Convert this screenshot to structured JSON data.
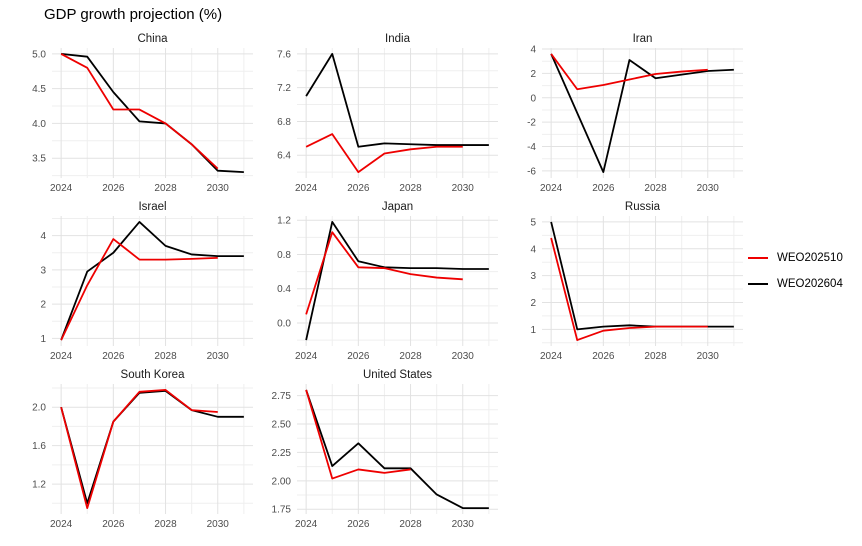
{
  "title": "GDP growth projection (%)",
  "legend": {
    "position": "right",
    "items": [
      {
        "label": "WEO202510",
        "color": "#ee0000"
      },
      {
        "label": "WEO202604",
        "color": "#000000"
      }
    ]
  },
  "chart_data": {
    "type": "line",
    "title": "GDP growth projection (%)",
    "xlabel": "",
    "ylabel": "",
    "grid": true,
    "legend_position": "right",
    "x_years": [
      2024,
      2025,
      2026,
      2027,
      2028,
      2029,
      2030,
      2031
    ],
    "xticks": [
      2024,
      2026,
      2028,
      2030
    ],
    "xtick_labels": [
      "2024",
      "2026",
      "2028",
      "2030"
    ],
    "x_minor": [
      2025,
      2027,
      2029,
      2031
    ],
    "xlim": [
      2023.65,
      2031.35
    ],
    "series_names": [
      "WEO202510",
      "WEO202604"
    ],
    "series_colors": [
      "#ee0000",
      "#000000"
    ],
    "facets": [
      {
        "name": "China",
        "yticks": [
          3.5,
          4.0,
          4.5,
          5.0
        ],
        "ytick_labels": [
          "3.5",
          "4.0",
          "4.5",
          "5.0"
        ],
        "ylim": [
          3.215,
          5.085
        ],
        "WEO202510": [
          5.0,
          4.8,
          4.2,
          4.2,
          4.0,
          3.7,
          3.35,
          null
        ],
        "WEO202604": [
          5.0,
          4.96,
          4.45,
          4.03,
          4.0,
          3.7,
          3.32,
          3.3
        ]
      },
      {
        "name": "India",
        "yticks": [
          6.4,
          6.8,
          7.2,
          7.6
        ],
        "ytick_labels": [
          "6.4",
          "6.8",
          "7.2",
          "7.6"
        ],
        "ylim": [
          6.13,
          7.67
        ],
        "WEO202510": [
          6.5,
          6.65,
          6.2,
          6.42,
          6.47,
          6.5,
          6.5,
          null
        ],
        "WEO202604": [
          7.1,
          7.6,
          6.5,
          6.54,
          6.53,
          6.52,
          6.52,
          6.52
        ]
      },
      {
        "name": "Iran",
        "yticks": [
          -6,
          -4,
          -2,
          0,
          2,
          4
        ],
        "ytick_labels": [
          "-6",
          "-4",
          "-2",
          "0",
          "2",
          "4"
        ],
        "ylim": [
          -6.585,
          4.085
        ],
        "WEO202510": [
          3.6,
          0.7,
          1.05,
          1.5,
          1.95,
          2.15,
          2.3,
          null
        ],
        "WEO202604": [
          3.6,
          -1.25,
          -6.1,
          3.1,
          1.6,
          1.9,
          2.2,
          2.3
        ]
      },
      {
        "name": "Israel",
        "yticks": [
          1,
          2,
          3,
          4
        ],
        "ytick_labels": [
          "1",
          "2",
          "3",
          "4"
        ],
        "ylim": [
          0.7775,
          4.5725
        ],
        "WEO202510": [
          0.95,
          2.55,
          3.9,
          3.3,
          3.3,
          3.32,
          3.35,
          null
        ],
        "WEO202604": [
          0.95,
          2.95,
          3.5,
          4.4,
          3.7,
          3.45,
          3.4,
          3.4
        ]
      },
      {
        "name": "Japan",
        "yticks": [
          0.0,
          0.4,
          0.8,
          1.2
        ],
        "ytick_labels": [
          "0.0",
          "0.4",
          "0.8",
          "1.2"
        ],
        "ylim": [
          -0.269,
          1.249
        ],
        "WEO202510": [
          0.1,
          1.06,
          0.65,
          0.64,
          0.57,
          0.53,
          0.51,
          null
        ],
        "WEO202604": [
          -0.2,
          1.18,
          0.72,
          0.65,
          0.64,
          0.64,
          0.63,
          0.63
        ]
      },
      {
        "name": "Russia",
        "yticks": [
          1,
          2,
          3,
          4,
          5
        ],
        "ytick_labels": [
          "1",
          "2",
          "3",
          "4",
          "5"
        ],
        "ylim": [
          0.38,
          5.22
        ],
        "WEO202510": [
          4.4,
          0.6,
          0.95,
          1.05,
          1.1,
          1.1,
          1.1,
          null
        ],
        "WEO202604": [
          5.0,
          1.0,
          1.1,
          1.15,
          1.1,
          1.1,
          1.1,
          1.1
        ]
      },
      {
        "name": "South Korea",
        "yticks": [
          1.2,
          1.6,
          2.0
        ],
        "ytick_labels": [
          "1.2",
          "1.6",
          "2.0"
        ],
        "ylim": [
          0.8885,
          2.2415
        ],
        "WEO202510": [
          2.0,
          0.95,
          1.85,
          2.16,
          2.18,
          1.97,
          1.95,
          null
        ],
        "WEO202604": [
          2.0,
          1.0,
          1.85,
          2.15,
          2.17,
          1.97,
          1.9,
          1.9
        ]
      },
      {
        "name": "United States",
        "yticks": [
          1.75,
          2.0,
          2.25,
          2.5,
          2.75
        ],
        "ytick_labels": [
          "1.75",
          "2.00",
          "2.25",
          "2.50",
          "2.75"
        ],
        "ylim": [
          1.708,
          2.852
        ],
        "WEO202510": [
          2.8,
          2.02,
          2.1,
          2.07,
          2.1,
          null,
          null,
          null
        ],
        "WEO202604": [
          2.8,
          2.13,
          2.33,
          2.11,
          2.11,
          1.88,
          1.76,
          1.76
        ]
      }
    ],
    "style": {
      "grid_major_color": "#e2e2e2",
      "grid_minor_color": "#efefef",
      "axis_text_color": "#4d4d4d",
      "facet_title_color": "#1a1a1a"
    }
  }
}
